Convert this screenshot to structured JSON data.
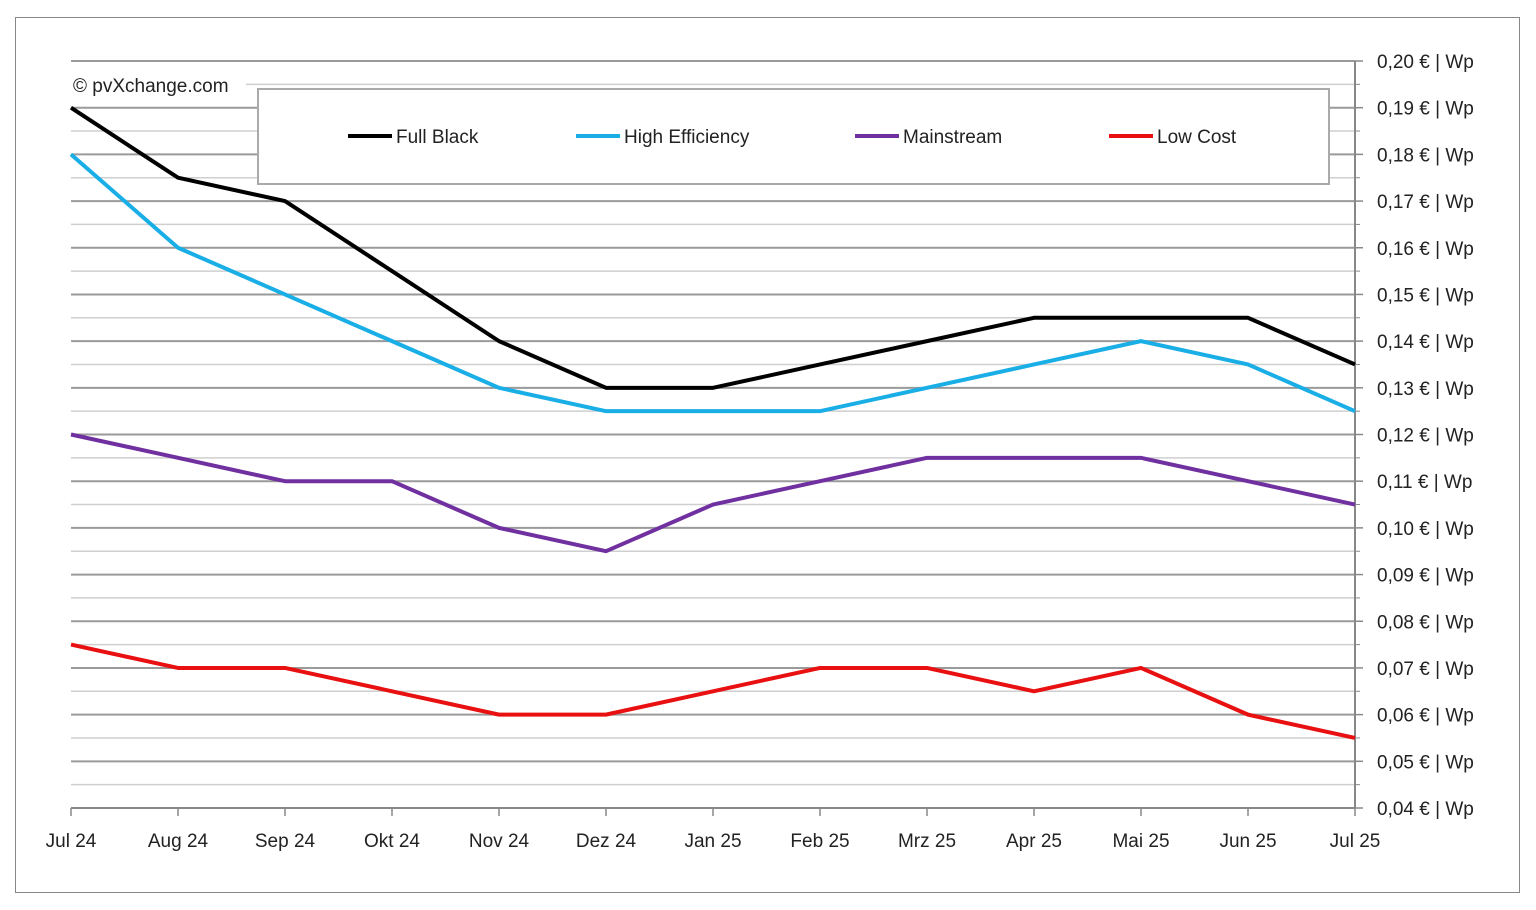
{
  "chart_data": {
    "type": "line",
    "watermark": "© pvXchange.com",
    "categories": [
      "Jul 24",
      "Aug 24",
      "Sep 24",
      "Okt 24",
      "Nov 24",
      "Dez 24",
      "Jan 25",
      "Feb 25",
      "Mrz 25",
      "Apr 25",
      "Mai 25",
      "Jun 25",
      "Jul 25"
    ],
    "y_axis": {
      "position": "right",
      "min": 0.04,
      "max": 0.2,
      "step": 0.01,
      "minor_step": 0.005,
      "tick_labels": [
        "0,04 € | Wp",
        "0,05 € | Wp",
        "0,06 € | Wp",
        "0,07 € | Wp",
        "0,08 € | Wp",
        "0,09 € | Wp",
        "0,10 € | Wp",
        "0,11 € | Wp",
        "0,12 € | Wp",
        "0,13 € | Wp",
        "0,14 € | Wp",
        "0,15 € | Wp",
        "0,16 € | Wp",
        "0,17 € | Wp",
        "0,18 € | Wp",
        "0,19 € | Wp",
        "0,20 € | Wp"
      ]
    },
    "grid": true,
    "legend": "top",
    "series": [
      {
        "name": "Full Black",
        "color": "#000000",
        "values": [
          0.19,
          0.175,
          0.17,
          0.155,
          0.14,
          0.13,
          0.13,
          0.135,
          0.14,
          0.145,
          0.145,
          0.145,
          0.135
        ]
      },
      {
        "name": "High Efficiency",
        "color": "#1aaee6",
        "values": [
          0.18,
          0.16,
          0.15,
          0.14,
          0.13,
          0.125,
          0.125,
          0.125,
          0.13,
          0.135,
          0.14,
          0.135,
          0.125
        ]
      },
      {
        "name": "Mainstream",
        "color": "#7030a0",
        "values": [
          0.12,
          0.115,
          0.11,
          0.11,
          0.1,
          0.095,
          0.105,
          0.11,
          0.115,
          0.115,
          0.115,
          0.11,
          0.105
        ]
      },
      {
        "name": "Low Cost",
        "color": "#e81010",
        "values": [
          0.075,
          0.07,
          0.07,
          0.065,
          0.06,
          0.06,
          0.065,
          0.07,
          0.07,
          0.065,
          0.07,
          0.06,
          0.055
        ]
      }
    ]
  }
}
